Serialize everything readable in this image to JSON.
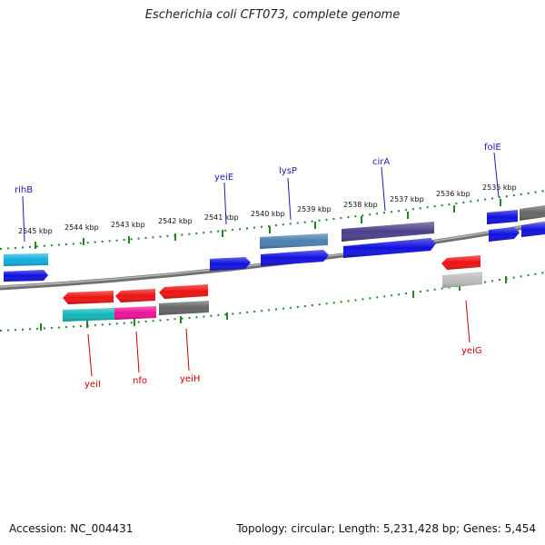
{
  "title": "Escherichia coli CFT073, complete genome",
  "footer": {
    "accession": "Accession: NC_004431",
    "topology": "Topology: circular; Length: 5,231,428 bp; Genes: 5,454"
  },
  "ticks": [
    "2545 kbp",
    "2544 kbp",
    "2543 kbp",
    "2542 kbp",
    "2541 kbp",
    "2540 kbp",
    "2539 kbp",
    "2538 kbp",
    "2537 kbp",
    "2536 kbp",
    "2535 kbp"
  ],
  "genes_top": [
    "rihB",
    "yeiE",
    "lysP",
    "cirA",
    "folE"
  ],
  "genes_bottom": [
    "yeiI",
    "nfo",
    "yeiH",
    "yeiG"
  ],
  "colors": {
    "backbone": "#808080",
    "tick": "#228822",
    "cds_blue": "#1010e0",
    "cds_red": "#ee1111",
    "cyan": "#00bcd4",
    "teal": "#10b8b8",
    "magenta": "#ee1199",
    "gray": "#666666",
    "steelblue": "#4a7fb0",
    "purple": "#4a3f8a",
    "lightgray": "#bbbbbb"
  }
}
